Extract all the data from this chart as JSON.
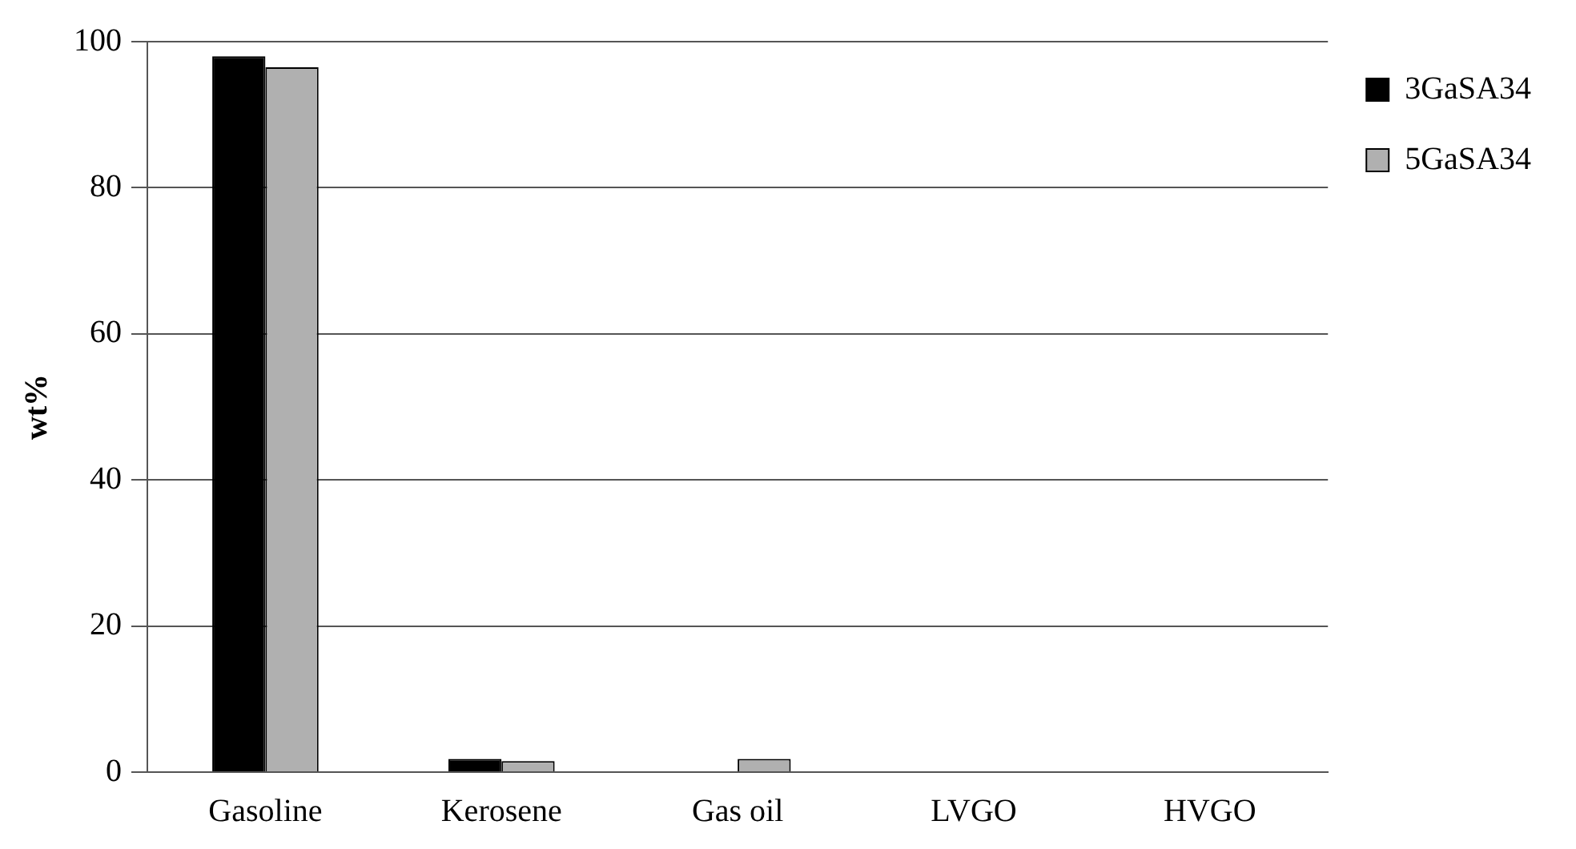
{
  "chart_data": {
    "type": "bar",
    "ylabel": "wt%",
    "categories": [
      "Gasoline",
      "Kerosene",
      "Gas oil",
      "LVGO",
      "HVGO"
    ],
    "series": [
      {
        "name": "3GaSA34",
        "color": "#000000",
        "values": [
          98,
          1.8,
          0,
          0,
          0
        ]
      },
      {
        "name": "5GaSA34",
        "color": "#b0b0b0",
        "values": [
          96.5,
          1.5,
          1.8,
          0,
          0
        ]
      }
    ],
    "ylim": [
      0,
      100
    ],
    "yticks": [
      0,
      20,
      40,
      60,
      80,
      100
    ],
    "grid": "y",
    "legend": "right"
  }
}
